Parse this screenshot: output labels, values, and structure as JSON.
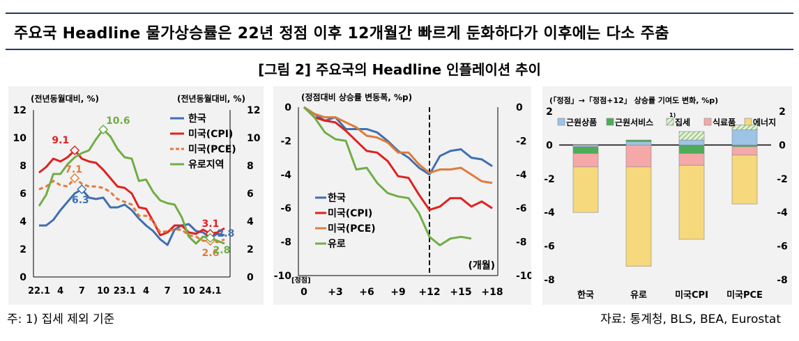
{
  "headline": "주요국 Headline 물가상승률은 22년 정점 이후 12개월간 빠르게 둔화하다가 이후에는 다소 주춤",
  "figure_title": "[그림 2] 주요국의 Headline 인플레이션 추이",
  "footnote": "주: 1) 집세 제외 기준",
  "source": "자료: 통계청, BLS, BEA, Eurostat",
  "colors": {
    "korea": "#3e6fb0",
    "us_cpi": "#e02020",
    "us_pce": "#e07b39",
    "euro": "#70ad47"
  },
  "chart_data": [
    {
      "type": "line",
      "ylabel_left": "(전년동월대비, %)",
      "ylabel_right": "(전년동월대비, %)",
      "ylim": [
        0,
        12
      ],
      "yticks": [
        "0",
        "2",
        "4",
        "6",
        "8",
        "10",
        "12"
      ],
      "xticks": [
        "22.1",
        "4",
        "7",
        "10",
        "23.1",
        "4",
        "7",
        "10",
        "24.1"
      ],
      "legend": {
        "position": "top-right"
      },
      "series": [
        {
          "name": "한국",
          "color": "#3e6fb0",
          "values": [
            3.7,
            3.7,
            4.1,
            4.8,
            5.4,
            6.0,
            6.3,
            5.7,
            5.6,
            5.7,
            5.0,
            5.0,
            5.2,
            4.8,
            4.2,
            3.7,
            3.3,
            2.7,
            2.3,
            3.4,
            3.7,
            3.8,
            3.3,
            3.2,
            2.8,
            3.1,
            3.0
          ]
        },
        {
          "name": "미국(CPI)",
          "color": "#e02020",
          "values": [
            7.5,
            7.9,
            8.5,
            8.3,
            8.6,
            9.1,
            8.5,
            8.3,
            8.2,
            7.7,
            7.1,
            6.5,
            6.4,
            6.0,
            5.0,
            4.9,
            4.0,
            3.0,
            3.2,
            3.7,
            3.7,
            3.2,
            3.1,
            3.4,
            3.1,
            3.2,
            3.5
          ]
        },
        {
          "name": "미국(PCE)",
          "color": "#e07b39",
          "dashed": true,
          "values": [
            6.3,
            6.5,
            6.9,
            6.6,
            6.5,
            7.1,
            6.7,
            6.5,
            6.5,
            6.4,
            6.1,
            5.6,
            5.4,
            5.2,
            4.4,
            4.4,
            4.0,
            3.2,
            3.3,
            3.4,
            3.4,
            3.0,
            2.9,
            2.6,
            2.6,
            2.5,
            2.7
          ]
        },
        {
          "name": "유로지역",
          "color": "#70ad47",
          "values": [
            5.1,
            5.9,
            7.4,
            7.4,
            8.1,
            8.6,
            8.9,
            9.1,
            9.9,
            10.6,
            10.1,
            9.2,
            8.6,
            8.5,
            6.9,
            7.0,
            6.1,
            5.5,
            5.3,
            5.2,
            4.3,
            2.9,
            2.4,
            2.9,
            2.8,
            2.6,
            2.4
          ]
        }
      ],
      "annotations": [
        {
          "text": "9.1",
          "series": "미국(CPI)",
          "index": 5
        },
        {
          "text": "7.1",
          "series": "미국(PCE)",
          "index": 5
        },
        {
          "text": "6.3",
          "series": "한국",
          "index": 6
        },
        {
          "text": "10.6",
          "series": "유로지역",
          "index": 9
        },
        {
          "text": "3.1",
          "series": "미국(CPI)",
          "index": 24
        },
        {
          "text": "2.8",
          "series": "한국",
          "index": 24
        },
        {
          "text": "2.6",
          "series": "미국(PCE)",
          "index": 24
        },
        {
          "text": "2.8",
          "series": "유로지역",
          "index": 24
        }
      ]
    },
    {
      "type": "line",
      "ylabel": "(정점대비 상승률 변동폭, %p)",
      "ylim": [
        -10,
        0
      ],
      "yticks": [
        "0",
        "-2",
        "-4",
        "-6",
        "-8",
        "-10"
      ],
      "xlabel": "(개월)",
      "xticks": [
        "0",
        "+3",
        "+6",
        "+9",
        "+12",
        "+15",
        "+18"
      ],
      "x_first_label": "[정점]",
      "vline_at": 12,
      "legend": {
        "position": "bottom-left"
      },
      "series": [
        {
          "name": "한국",
          "color": "#3e6fb0",
          "values": [
            0,
            -0.4,
            -0.8,
            -0.6,
            -1.3,
            -1.3,
            -1.3,
            -1.5,
            -2.0,
            -2.6,
            -3.0,
            -3.6,
            -4.0,
            -2.9,
            -2.6,
            -2.5,
            -3.0,
            -3.1,
            -3.5
          ]
        },
        {
          "name": "미국(CPI)",
          "color": "#e02020",
          "values": [
            0,
            -0.6,
            -0.8,
            -0.9,
            -1.4,
            -2.0,
            -2.6,
            -2.7,
            -3.2,
            -4.1,
            -4.2,
            -5.2,
            -6.1,
            -5.9,
            -5.4,
            -5.4,
            -5.9,
            -5.6,
            -6.0
          ]
        },
        {
          "name": "미국(PCE)",
          "color": "#e07b39",
          "values": [
            0,
            -0.4,
            -0.6,
            -0.6,
            -0.9,
            -1.2,
            -1.7,
            -1.8,
            -2.1,
            -2.7,
            -2.7,
            -3.4,
            -3.9,
            -3.7,
            -3.7,
            -3.6,
            -4.0,
            -4.4,
            -4.5
          ]
        },
        {
          "name": "유로",
          "color": "#70ad47",
          "values": [
            0,
            -0.6,
            -1.5,
            -1.9,
            -2.0,
            -3.7,
            -3.6,
            -4.5,
            -5.1,
            -5.3,
            -5.4,
            -6.3,
            -7.7,
            -8.2,
            -7.8,
            -7.7,
            -7.8
          ]
        }
      ]
    },
    {
      "type": "bar",
      "stacked": true,
      "ylabel": "(「정점」→「정점+12」 상승률 기여도 변화, %p)",
      "ylim": [
        -8,
        2
      ],
      "yticks": [
        "2",
        "0",
        "-2",
        "-4",
        "-6",
        "-8"
      ],
      "categories": [
        "한국",
        "유로",
        "미국CPI",
        "미국PCE"
      ],
      "legend": {
        "position": "top"
      },
      "series": [
        {
          "name": "근원상품",
          "color": "#9dc3e6",
          "values": [
            -0.1,
            0.2,
            0.3,
            0.9
          ]
        },
        {
          "name": "근원서비스",
          "color": "#4eab57",
          "values": [
            -0.4,
            0.1,
            -0.5,
            -0.1
          ]
        },
        {
          "name": "집세",
          "name_sup": "1)",
          "color": "#a9d18e",
          "hatched": true,
          "values": [
            0.0,
            0.0,
            0.5,
            0.3
          ]
        },
        {
          "name": "식료품",
          "color": "#f4a8a8",
          "values": [
            -0.8,
            -1.3,
            -0.7,
            -0.5
          ]
        },
        {
          "name": "에너지",
          "color": "#f6d97c",
          "values": [
            -2.7,
            -5.9,
            -4.4,
            -2.9
          ]
        }
      ],
      "totals_note": "",
      "negative_stack_order": [
        "근원서비스",
        "식료품",
        "에너지"
      ]
    }
  ]
}
